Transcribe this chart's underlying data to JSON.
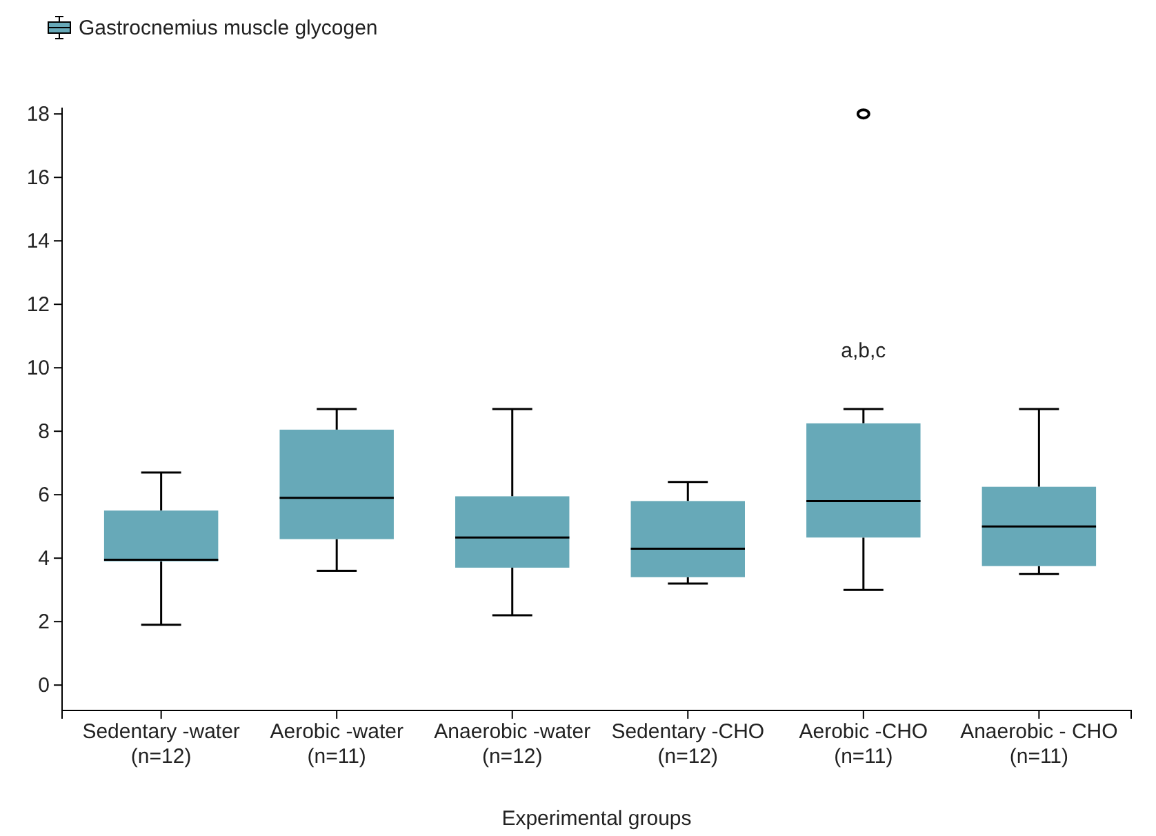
{
  "chart_data": {
    "type": "box",
    "xlabel": "Experimental groups",
    "legend": "top left",
    "grid": false,
    "categories": [
      "Sedentary -water\n(n=12)",
      "Aerobic -water\n(n=11)",
      "Anaerobic -water\n(n=12)",
      "Sedentary -CHO\n(n=12)",
      "Aerobic -CHO\n(n=11)",
      "Anaerobic - CHO\n(n=11)"
    ],
    "ylim": [
      -0.8,
      18.2
    ],
    "yticks": [
      0,
      2,
      4,
      6,
      8,
      10,
      12,
      14,
      16,
      18
    ],
    "series": [
      {
        "name": "Gastrocnemius muscle glycogen",
        "color": "#67a9b8",
        "boxes": [
          {
            "low": 1.9,
            "q1": 3.9,
            "median": 3.95,
            "q3": 5.5,
            "high": 6.7
          },
          {
            "low": 3.6,
            "q1": 4.6,
            "median": 5.9,
            "q3": 8.05,
            "high": 8.7
          },
          {
            "low": 2.2,
            "q1": 3.7,
            "median": 4.65,
            "q3": 5.95,
            "high": 8.7
          },
          {
            "low": 3.2,
            "q1": 3.4,
            "median": 4.3,
            "q3": 5.8,
            "high": 6.4
          },
          {
            "low": 3.0,
            "q1": 4.65,
            "median": 5.8,
            "q3": 8.25,
            "high": 8.7,
            "outliers": [
              18
            ]
          },
          {
            "low": 3.5,
            "q1": 3.75,
            "median": 5.0,
            "q3": 6.25,
            "high": 8.7
          }
        ]
      }
    ],
    "annotations": [
      "a,b,c"
    ]
  }
}
